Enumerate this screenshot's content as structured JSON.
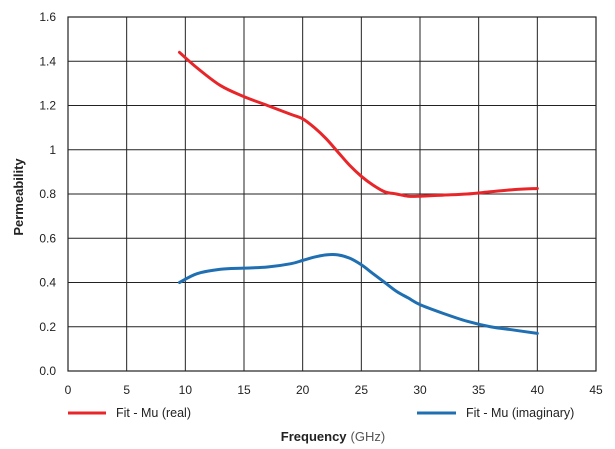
{
  "chart_data": {
    "type": "line",
    "xlabel": "Frequency",
    "xunit": "(GHz)",
    "ylabel": "Permeability",
    "xlim": [
      0,
      45
    ],
    "ylim": [
      0,
      1.6
    ],
    "grid": true,
    "legend_position": "bottom",
    "x_ticks": [
      "0",
      "5",
      "10",
      "15",
      "20",
      "25",
      "30",
      "35",
      "40",
      "45"
    ],
    "y_ticks": [
      "0.0",
      "0.2",
      "0.4",
      "0.6",
      "0.8",
      "1",
      "1.2",
      "1.4",
      "1.6"
    ],
    "series": [
      {
        "name": "Fit - Mu (real)",
        "color": "#e8262a",
        "x": [
          9.5,
          11,
          13,
          15,
          17,
          19,
          20,
          21,
          22,
          23,
          24,
          25,
          26,
          27,
          28,
          29,
          30,
          32,
          34,
          36,
          38,
          40
        ],
        "y": [
          1.44,
          1.37,
          1.29,
          1.24,
          1.2,
          1.16,
          1.14,
          1.1,
          1.05,
          0.99,
          0.93,
          0.88,
          0.84,
          0.81,
          0.8,
          0.79,
          0.79,
          0.795,
          0.8,
          0.81,
          0.82,
          0.825
        ]
      },
      {
        "name": "Fit - Mu (imaginary)",
        "color": "#1f6fb2",
        "x": [
          9.5,
          11,
          13,
          15,
          17,
          19,
          20,
          21,
          22,
          23,
          24,
          25,
          26,
          27,
          28,
          29,
          30,
          32,
          34,
          36,
          38,
          40
        ],
        "y": [
          0.4,
          0.44,
          0.46,
          0.465,
          0.47,
          0.485,
          0.5,
          0.515,
          0.525,
          0.525,
          0.51,
          0.48,
          0.44,
          0.4,
          0.36,
          0.33,
          0.3,
          0.26,
          0.225,
          0.2,
          0.185,
          0.17
        ]
      }
    ]
  }
}
